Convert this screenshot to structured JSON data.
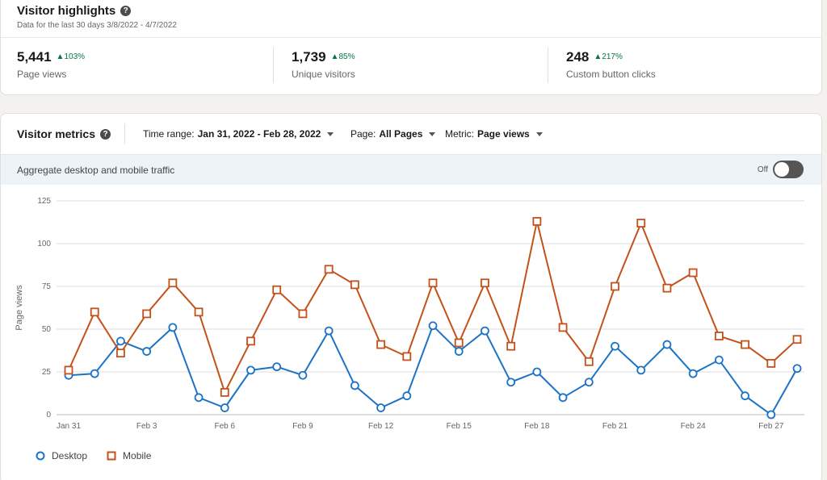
{
  "highlights": {
    "title": "Visitor highlights",
    "help_icon": "?",
    "subtitle": "Data for the last 30 days 3/8/2022 - 4/7/2022",
    "stats": [
      {
        "value": "5,441",
        "change": "▲103%",
        "label": "Page views"
      },
      {
        "value": "1,739",
        "change": "▲85%",
        "label": "Unique visitors"
      },
      {
        "value": "248",
        "change": "▲217%",
        "label": "Custom button clicks"
      }
    ]
  },
  "metrics": {
    "title": "Visitor metrics",
    "time_range_label": "Time range:",
    "time_range_value": "Jan 31, 2022 - Feb 28, 2022",
    "page_label": "Page:",
    "page_value": "All Pages",
    "metric_label": "Metric:",
    "metric_value": "Page views",
    "aggregate_label": "Aggregate desktop and mobile traffic",
    "toggle_state": "Off"
  },
  "colors": {
    "desktop": "#1c72c4",
    "mobile": "#c3521a",
    "positive": "#057642"
  },
  "chart_data": {
    "type": "line",
    "ylabel": "Page views",
    "ylim": [
      0,
      125
    ],
    "yticks": [
      0,
      25,
      50,
      75,
      100,
      125
    ],
    "xtick_labels": [
      "Jan 31",
      "Feb 3",
      "Feb 6",
      "Feb 9",
      "Feb 12",
      "Feb 15",
      "Feb 18",
      "Feb 21",
      "Feb 24",
      "Feb 27"
    ],
    "x": [
      "Jan 31",
      "Feb 1",
      "Feb 2",
      "Feb 3",
      "Feb 4",
      "Feb 5",
      "Feb 6",
      "Feb 7",
      "Feb 8",
      "Feb 9",
      "Feb 10",
      "Feb 11",
      "Feb 12",
      "Feb 13",
      "Feb 14",
      "Feb 15",
      "Feb 16",
      "Feb 17",
      "Feb 18",
      "Feb 19",
      "Feb 20",
      "Feb 21",
      "Feb 22",
      "Feb 23",
      "Feb 24",
      "Feb 25",
      "Feb 26",
      "Feb 27",
      "Feb 28"
    ],
    "series": [
      {
        "name": "Desktop",
        "values": [
          23,
          24,
          43,
          37,
          51,
          10,
          4,
          26,
          28,
          23,
          49,
          17,
          4,
          11,
          52,
          37,
          49,
          19,
          25,
          10,
          19,
          40,
          26,
          41,
          24,
          32,
          11,
          0,
          27
        ]
      },
      {
        "name": "Mobile",
        "values": [
          26,
          60,
          36,
          59,
          77,
          60,
          13,
          43,
          73,
          59,
          85,
          76,
          41,
          34,
          77,
          42,
          77,
          40,
          113,
          51,
          31,
          75,
          112,
          74,
          83,
          46,
          41,
          30,
          44
        ]
      }
    ],
    "grid": true,
    "legend": "bottom-left"
  }
}
